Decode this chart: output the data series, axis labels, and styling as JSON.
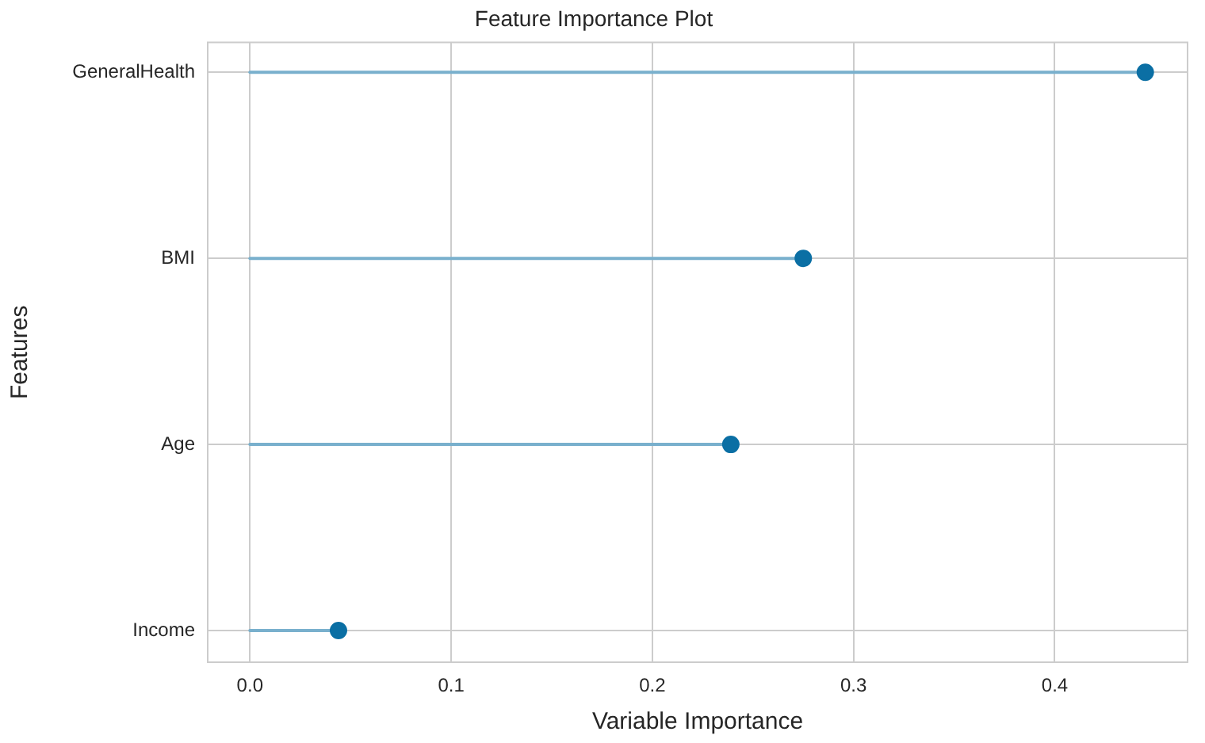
{
  "chart_data": {
    "type": "lollipop",
    "orientation": "horizontal",
    "title": "Feature Importance Plot",
    "xlabel": "Variable Importance",
    "ylabel": "Features",
    "categories": [
      "GeneralHealth",
      "BMI",
      "Age",
      "Income"
    ],
    "values": [
      0.445,
      0.275,
      0.239,
      0.044
    ],
    "color": "#0b6fa4",
    "xlim": [
      -0.021,
      0.466
    ],
    "xticks": [
      {
        "value": 0,
        "label": "0.0"
      },
      {
        "value": 0.1,
        "label": "0.1"
      },
      {
        "value": 0.2,
        "label": "0.2"
      },
      {
        "value": 0.3,
        "label": "0.3"
      },
      {
        "value": 0.4,
        "label": "0.4"
      }
    ],
    "grid": true,
    "marker": "circle",
    "legend": false
  }
}
